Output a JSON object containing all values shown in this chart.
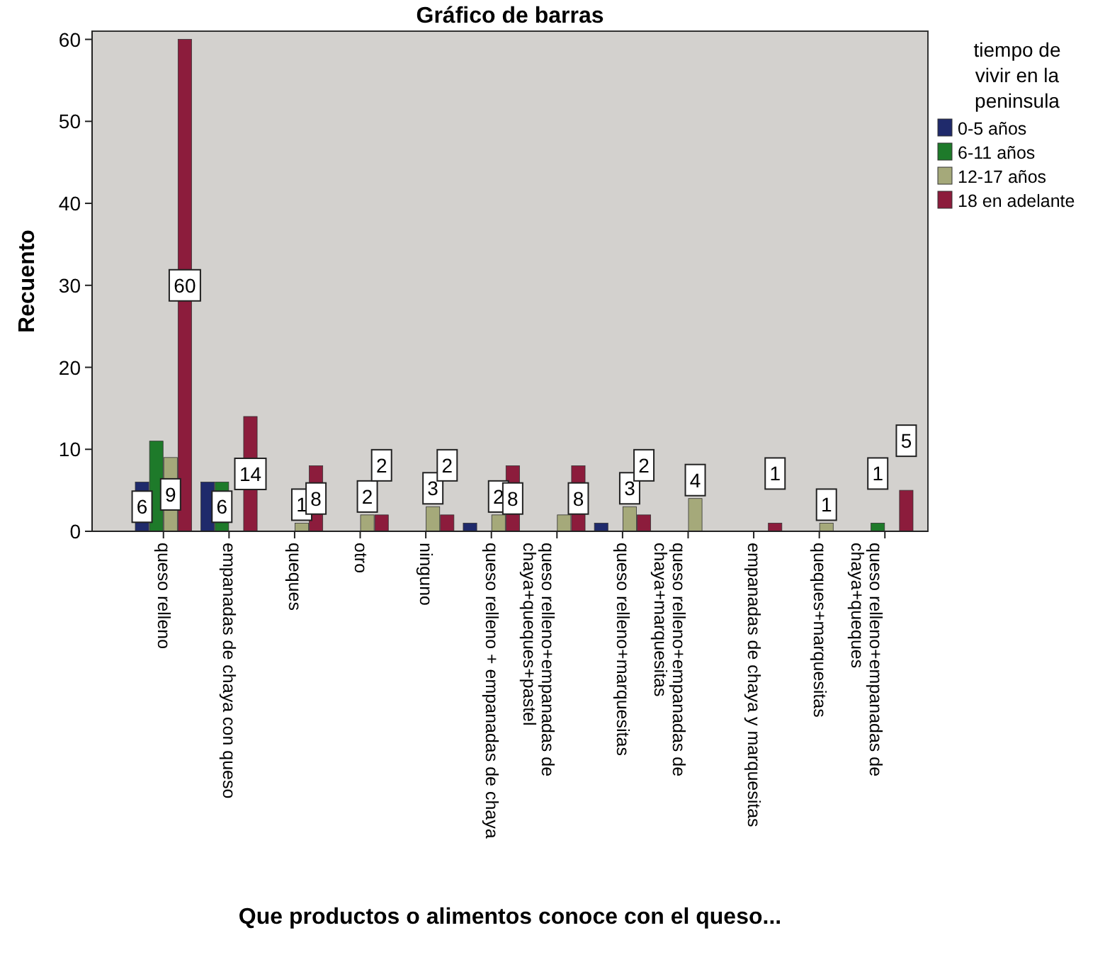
{
  "chart_data": {
    "type": "bar",
    "title": "Gráfico de barras",
    "xlabel": "Que productos o alimentos conoce con el queso...",
    "ylabel": "Recuento",
    "legend_title": "tiempo de vivir en la peninsula",
    "legend": "right",
    "grid": false,
    "categories": [
      "queso relleno",
      "empanadas de chaya con queso",
      "queques",
      "otro",
      "ninguno",
      "queso relleno + empanadas de chaya",
      "queso relleno+empanadas de chaya+queques+pastel",
      "queso relleno+marquesitas",
      "queso relleno+empanadas de chaya+marquesitas",
      "empanadas de chaya y marquesitas",
      "queques+marquesitas",
      "queso relleno+empanadas de chaya+queques"
    ],
    "ylim": [
      0,
      61
    ],
    "yticks": [
      0,
      10,
      20,
      30,
      40,
      50,
      60
    ],
    "series": [
      {
        "name": "0-5 años",
        "color": "#1f2a6b",
        "values": [
          6,
          6,
          null,
          null,
          null,
          1,
          null,
          1,
          null,
          null,
          null,
          null
        ],
        "value_labels": [
          "6",
          null,
          null,
          null,
          null,
          null,
          null,
          null,
          null,
          null,
          null,
          null
        ]
      },
      {
        "name": "6-11 años",
        "color": "#1e7a2a",
        "values": [
          11,
          6,
          null,
          null,
          null,
          null,
          null,
          null,
          null,
          null,
          null,
          1
        ],
        "value_labels": [
          null,
          "6",
          null,
          null,
          null,
          null,
          null,
          null,
          null,
          null,
          null,
          "1"
        ]
      },
      {
        "name": "12-17 años",
        "color": "#a5a97a",
        "values": [
          9,
          null,
          1,
          2,
          3,
          2,
          2,
          3,
          4,
          null,
          1,
          null
        ],
        "value_labels": [
          "9",
          null,
          "1",
          "2",
          "3",
          "2",
          null,
          "3",
          "4",
          null,
          "1",
          null
        ]
      },
      {
        "name": "18 en adelante",
        "color": "#8c1c3c",
        "values": [
          60,
          14,
          8,
          2,
          2,
          8,
          8,
          2,
          null,
          1,
          null,
          5
        ],
        "value_labels": [
          "60",
          "14",
          "8",
          "2",
          "2",
          "8",
          "8",
          "2",
          null,
          "1",
          null,
          "5"
        ]
      }
    ]
  }
}
